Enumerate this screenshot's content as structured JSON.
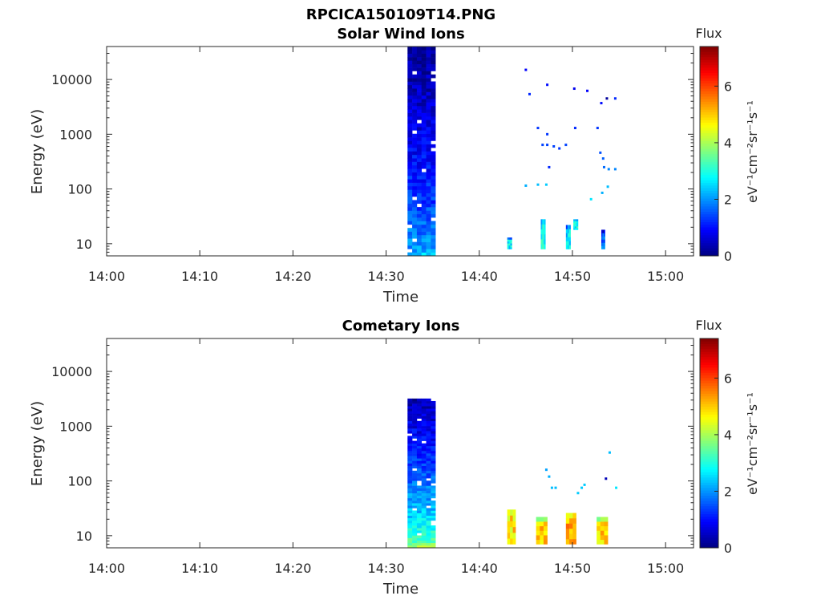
{
  "figure_title": "RPCICA150109T14.PNG",
  "chart_data": [
    {
      "type": "heatmap",
      "title": "Solar Wind Ions",
      "xlabel": "Time",
      "ylabel": "Energy (eV)",
      "xscale": "time",
      "xlim": [
        "14:00",
        "15:03"
      ],
      "xticks": [
        "14:00",
        "14:10",
        "14:20",
        "14:30",
        "14:40",
        "14:50",
        "15:00"
      ],
      "yscale": "log",
      "ylim": [
        6,
        40000
      ],
      "yticks": [
        "10",
        "100",
        "1000",
        "10000"
      ],
      "colorbar": {
        "label": "Flux",
        "unit": "eV⁻¹cm⁻²sr⁻¹s⁻¹",
        "range": [
          0,
          7.4
        ],
        "ticks": [
          "0",
          "2",
          "4",
          "6"
        ],
        "colormap": "jet"
      },
      "blocks": [
        {
          "t0": "14:32.3",
          "t1": "14:35.3",
          "e0": 6,
          "e1": 40000,
          "flux_low_energy": 2.4,
          "flux_high_energy": 0.2
        },
        {
          "t0": "14:43.0",
          "t1": "14:43.5",
          "e0": 8,
          "e1": 13,
          "flux": 2.7
        },
        {
          "t0": "14:46.6",
          "t1": "14:47.1",
          "e0": 8,
          "e1": 28,
          "flux": 2.9
        },
        {
          "t0": "14:49.3",
          "t1": "14:49.8",
          "e0": 8,
          "e1": 22,
          "flux": 2.6
        },
        {
          "t0": "14:50.1",
          "t1": "14:50.6",
          "e0": 18,
          "e1": 28,
          "flux": 2.9
        },
        {
          "t0": "14:53.1",
          "t1": "14:53.5",
          "e0": 8,
          "e1": 18,
          "flux": 1.6
        }
      ],
      "points": [
        {
          "t": "14:45.0",
          "e": 15000,
          "flux": 0.9
        },
        {
          "t": "14:45.4",
          "e": 5400,
          "flux": 1.2
        },
        {
          "t": "14:47.3",
          "e": 8000,
          "flux": 1.0
        },
        {
          "t": "14:50.2",
          "e": 6800,
          "flux": 0.8
        },
        {
          "t": "14:51.6",
          "e": 6200,
          "flux": 0.9
        },
        {
          "t": "14:53.1",
          "e": 3700,
          "flux": 1.0
        },
        {
          "t": "14:53.7",
          "e": 4500,
          "flux": 0.2
        },
        {
          "t": "14:54.6",
          "e": 4500,
          "flux": 1.2
        },
        {
          "t": "14:46.3",
          "e": 1300,
          "flux": 1.3
        },
        {
          "t": "14:47.3",
          "e": 1000,
          "flux": 1.3
        },
        {
          "t": "14:50.3",
          "e": 1300,
          "flux": 1.2
        },
        {
          "t": "14:52.7",
          "e": 1300,
          "flux": 1.3
        },
        {
          "t": "14:46.8",
          "e": 640,
          "flux": 1.4
        },
        {
          "t": "14:47.3",
          "e": 640,
          "flux": 1.4
        },
        {
          "t": "14:48.0",
          "e": 600,
          "flux": 1.4
        },
        {
          "t": "14:48.6",
          "e": 550,
          "flux": 1.3
        },
        {
          "t": "14:49.3",
          "e": 640,
          "flux": 1.4
        },
        {
          "t": "14:53.0",
          "e": 460,
          "flux": 1.5
        },
        {
          "t": "14:53.3",
          "e": 360,
          "flux": 1.6
        },
        {
          "t": "14:47.5",
          "e": 250,
          "flux": 1.2
        },
        {
          "t": "14:53.4",
          "e": 250,
          "flux": 1.7
        },
        {
          "t": "14:53.9",
          "e": 230,
          "flux": 1.9
        },
        {
          "t": "14:54.6",
          "e": 230,
          "flux": 1.9
        },
        {
          "t": "14:45.0",
          "e": 115,
          "flux": 2.2
        },
        {
          "t": "14:46.3",
          "e": 120,
          "flux": 2.3
        },
        {
          "t": "14:47.2",
          "e": 120,
          "flux": 2.4
        },
        {
          "t": "14:53.8",
          "e": 110,
          "flux": 2.3
        },
        {
          "t": "14:53.2",
          "e": 85,
          "flux": 2.2
        },
        {
          "t": "14:52.0",
          "e": 65,
          "flux": 2.6
        }
      ]
    },
    {
      "type": "heatmap",
      "title": "Cometary Ions",
      "xlabel": "Time",
      "ylabel": "Energy (eV)",
      "xscale": "time",
      "xlim": [
        "14:00",
        "15:03"
      ],
      "xticks": [
        "14:00",
        "14:10",
        "14:20",
        "14:30",
        "14:40",
        "14:50",
        "15:00"
      ],
      "yscale": "log",
      "ylim": [
        6,
        40000
      ],
      "yticks": [
        "10",
        "100",
        "1000",
        "10000"
      ],
      "colorbar": {
        "label": "Flux",
        "unit": "eV⁻¹cm⁻²sr⁻¹s⁻¹",
        "range": [
          0,
          7.4
        ],
        "ticks": [
          "0",
          "2",
          "4",
          "6"
        ],
        "colormap": "jet"
      },
      "blocks": [
        {
          "t0": "14:32.3",
          "t1": "14:35.3",
          "e0": 6,
          "e1": 3200,
          "flux_low_energy": 4.0,
          "flux_high_energy": 0.4
        },
        {
          "t0": "14:43.0",
          "t1": "14:43.9",
          "e0": 7,
          "e1": 30,
          "flux": 4.8
        },
        {
          "t0": "14:46.1",
          "t1": "14:47.3",
          "e0": 7,
          "e1": 22,
          "flux": 4.9
        },
        {
          "t0": "14:49.3",
          "t1": "14:50.4",
          "e0": 7,
          "e1": 26,
          "flux": 5.3
        },
        {
          "t0": "14:52.6",
          "t1": "14:53.8",
          "e0": 7,
          "e1": 22,
          "flux": 4.9
        }
      ],
      "points": [
        {
          "t": "14:47.2",
          "e": 160,
          "flux": 2.1
        },
        {
          "t": "14:47.5",
          "e": 120,
          "flux": 2.2
        },
        {
          "t": "14:47.8",
          "e": 75,
          "flux": 2.3
        },
        {
          "t": "14:48.2",
          "e": 75,
          "flux": 2.3
        },
        {
          "t": "14:50.6",
          "e": 60,
          "flux": 2.4
        },
        {
          "t": "14:51.0",
          "e": 75,
          "flux": 2.4
        },
        {
          "t": "14:51.3",
          "e": 85,
          "flux": 2.4
        },
        {
          "t": "14:53.6",
          "e": 110,
          "flux": 0.4
        },
        {
          "t": "14:54.0",
          "e": 330,
          "flux": 2.3
        },
        {
          "t": "14:54.7",
          "e": 75,
          "flux": 2.6
        }
      ]
    }
  ]
}
